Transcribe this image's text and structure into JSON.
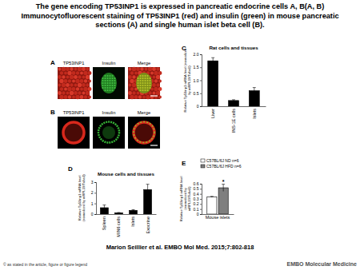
{
  "header": {
    "title": "The gene encoding TP53INP1 is expressed in pancreatic endocrine cells A, B(A, B) Immunocytofluorescent staining of TP53INP1 (red) and insulin (green) in mouse pancreatic sections (A) and single human islet beta cell (B)."
  },
  "panels": [
    {
      "label": "A",
      "columns": [
        "TP53INP1",
        "Insulin",
        "Merge"
      ]
    },
    {
      "label": "B",
      "columns": [
        "TP53INP1",
        "Insulin",
        "Merge"
      ]
    }
  ],
  "chart_data": [
    {
      "type": "bar",
      "panel": "C",
      "title": "Rat cells and tissues",
      "ylabel": "Relative Tp53inp1 mRNA level (normalized by mRPL19/Tuba1)",
      "categories": [
        "Liver",
        "INS-1E cells",
        "Islets"
      ],
      "values": [
        1.75,
        0.22,
        0.6
      ],
      "errors": [
        0.12,
        0.03,
        0.12
      ],
      "color": "#000000",
      "ylim": [
        0,
        2
      ],
      "yticks": [
        0,
        0.5,
        {
          "value": 1,
          "label": "1.0"
        },
        1.5,
        {
          "value": 2,
          "label": "2.0"
        }
      ]
    },
    {
      "type": "bar",
      "panel": "D",
      "title": "Mouse cells and tissues",
      "ylabel": "Relative Tp53inp1 mRNA level (normalized by mRPL19/Tuba1)",
      "categories": [
        "Spleen",
        "MIN6 cells",
        "Islets",
        "Exocrine"
      ],
      "values": [
        0.6,
        0.12,
        0.35,
        2.3
      ],
      "errors": [
        0.25,
        0.03,
        0.06,
        0.5
      ],
      "color": "#000000",
      "ylim": [
        0,
        3
      ],
      "yticks": [
        0,
        1,
        2,
        3
      ]
    },
    {
      "type": "bar",
      "panel": "E",
      "ylabel": "Relative Tp53inp1 mRNA level (normalized by mRPL19/Tuba1)",
      "categories": [
        "Mouse islets"
      ],
      "series": [
        {
          "name": "C57BL/6J ND n=6",
          "color": "#ffffff",
          "values": [
            0.34
          ],
          "errors": [
            0.01
          ]
        },
        {
          "name": "C57BL/6J HFD n=6",
          "color": "#7f7f7f",
          "values": [
            0.52
          ],
          "errors": [
            0.07
          ]
        }
      ],
      "annotations": [
        "*"
      ],
      "legend": "top-left",
      "ylim": [
        0,
        0.6
      ],
      "yticks": [
        0,
        0.1,
        0.2,
        0.3,
        0.4,
        0.5,
        0.6
      ]
    }
  ],
  "footer": {
    "citation": "Marion Seillier et al. EMBO Mol Med. 2015;7:802-818",
    "copyright": "© as stated in the article, figure or figure legend",
    "journal": "EMBO Molecular Medicine"
  }
}
